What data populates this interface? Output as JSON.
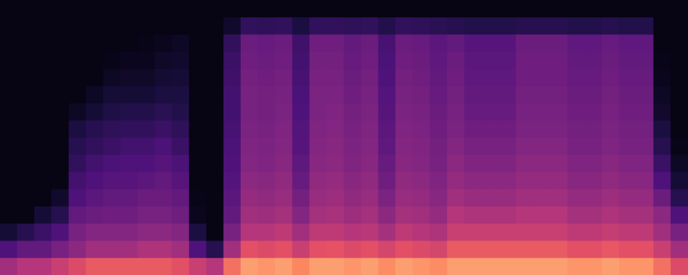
{
  "chart_data": {
    "type": "heatmap",
    "color": "magma",
    "tick_labels": false,
    "zlim": [
      0,
      100
    ],
    "x": [
      null,
      null,
      null,
      null,
      null,
      null,
      null,
      null,
      null,
      null,
      null,
      null,
      null,
      null,
      null,
      null,
      null,
      null,
      null,
      null,
      null,
      null,
      null,
      null,
      null,
      null,
      null,
      null,
      null,
      null,
      null,
      null,
      null,
      null,
      null,
      null,
      null,
      null,
      null,
      null
    ],
    "y": [
      null,
      null,
      null,
      null,
      null,
      null,
      null,
      null,
      null,
      null,
      null,
      null,
      null,
      null,
      null,
      null
    ],
    "cells": [
      [
        45,
        25,
        10,
        3,
        3,
        3,
        3,
        3,
        3,
        3,
        3,
        3,
        3,
        3,
        3,
        3
      ],
      [
        50,
        30,
        15,
        3,
        3,
        3,
        3,
        3,
        3,
        3,
        3,
        3,
        3,
        3,
        3,
        3
      ],
      [
        50,
        30,
        20,
        10,
        3,
        3,
        3,
        3,
        3,
        3,
        3,
        3,
        3,
        3,
        3,
        3
      ],
      [
        55,
        35,
        25,
        15,
        8,
        3,
        3,
        3,
        3,
        3,
        3,
        3,
        3,
        3,
        3,
        3
      ],
      [
        60,
        40,
        35,
        30,
        25,
        22,
        18,
        15,
        12,
        6,
        3,
        3,
        3,
        3,
        3,
        3
      ],
      [
        65,
        45,
        38,
        32,
        28,
        25,
        22,
        18,
        15,
        10,
        6,
        3,
        3,
        3,
        3,
        3
      ],
      [
        65,
        45,
        38,
        33,
        30,
        27,
        24,
        20,
        17,
        13,
        10,
        6,
        4,
        3,
        3,
        3
      ],
      [
        65,
        45,
        38,
        33,
        30,
        27,
        25,
        22,
        18,
        14,
        10,
        7,
        5,
        3,
        3,
        3
      ],
      [
        65,
        48,
        40,
        35,
        32,
        28,
        25,
        22,
        18,
        14,
        10,
        7,
        5,
        4,
        3,
        3
      ],
      [
        65,
        48,
        40,
        35,
        32,
        30,
        27,
        24,
        20,
        16,
        12,
        9,
        7,
        5,
        3,
        3
      ],
      [
        62,
        45,
        38,
        33,
        30,
        27,
        24,
        20,
        17,
        14,
        12,
        10,
        8,
        6,
        3,
        3
      ],
      [
        55,
        25,
        12,
        5,
        4,
        3,
        3,
        3,
        3,
        3,
        3,
        3,
        3,
        3,
        3,
        3
      ],
      [
        50,
        15,
        3,
        3,
        3,
        3,
        3,
        3,
        3,
        3,
        3,
        3,
        3,
        3,
        3,
        3
      ],
      [
        70,
        45,
        35,
        30,
        28,
        26,
        25,
        24,
        23,
        22,
        22,
        21,
        20,
        18,
        8,
        3
      ],
      [
        80,
        62,
        50,
        45,
        42,
        40,
        38,
        37,
        36,
        35,
        35,
        34,
        33,
        32,
        18,
        3
      ],
      [
        78,
        60,
        50,
        44,
        41,
        39,
        37,
        36,
        35,
        34,
        34,
        33,
        32,
        31,
        17,
        3
      ],
      [
        80,
        62,
        52,
        46,
        43,
        41,
        39,
        38,
        37,
        36,
        35,
        34,
        33,
        32,
        18,
        3
      ],
      [
        75,
        55,
        45,
        38,
        34,
        31,
        29,
        27,
        26,
        25,
        24,
        23,
        22,
        21,
        12,
        3
      ],
      [
        80,
        62,
        52,
        46,
        43,
        41,
        39,
        38,
        37,
        36,
        36,
        35,
        34,
        33,
        18,
        3
      ],
      [
        80,
        63,
        52,
        47,
        44,
        42,
        40,
        39,
        38,
        37,
        36,
        35,
        34,
        33,
        18,
        3
      ],
      [
        78,
        60,
        50,
        44,
        41,
        39,
        37,
        36,
        35,
        34,
        33,
        32,
        31,
        30,
        17,
        3
      ],
      [
        80,
        62,
        51,
        46,
        43,
        41,
        39,
        38,
        37,
        36,
        35,
        34,
        33,
        32,
        18,
        3
      ],
      [
        76,
        58,
        46,
        40,
        36,
        33,
        31,
        29,
        28,
        27,
        26,
        25,
        24,
        23,
        14,
        3
      ],
      [
        80,
        62,
        52,
        46,
        43,
        41,
        39,
        38,
        37,
        36,
        35,
        34,
        33,
        32,
        18,
        3
      ],
      [
        78,
        60,
        50,
        45,
        42,
        40,
        38,
        37,
        36,
        35,
        34,
        33,
        32,
        31,
        17,
        3
      ],
      [
        76,
        58,
        48,
        42,
        39,
        37,
        35,
        34,
        33,
        32,
        31,
        30,
        29,
        28,
        16,
        3
      ],
      [
        80,
        65,
        55,
        50,
        45,
        42,
        40,
        38,
        36,
        35,
        34,
        33,
        32,
        30,
        15,
        3
      ],
      [
        80,
        65,
        55,
        48,
        43,
        40,
        37,
        35,
        33,
        31,
        30,
        29,
        28,
        27,
        14,
        3
      ],
      [
        80,
        65,
        55,
        48,
        43,
        40,
        37,
        35,
        33,
        31,
        30,
        29,
        28,
        27,
        14,
        3
      ],
      [
        80,
        65,
        55,
        48,
        43,
        40,
        37,
        35,
        33,
        31,
        30,
        29,
        28,
        27,
        14,
        3
      ],
      [
        80,
        65,
        55,
        50,
        45,
        42,
        40,
        38,
        36,
        35,
        34,
        33,
        33,
        32,
        15,
        3
      ],
      [
        80,
        65,
        55,
        50,
        45,
        42,
        40,
        38,
        36,
        35,
        34,
        33,
        33,
        32,
        15,
        3
      ],
      [
        80,
        65,
        55,
        50,
        45,
        42,
        40,
        38,
        36,
        35,
        34,
        33,
        33,
        32,
        15,
        3
      ],
      [
        78,
        62,
        52,
        46,
        42,
        39,
        37,
        35,
        34,
        33,
        32,
        31,
        30,
        29,
        14,
        3
      ],
      [
        78,
        62,
        52,
        46,
        42,
        39,
        37,
        35,
        34,
        33,
        32,
        31,
        30,
        29,
        14,
        3
      ],
      [
        80,
        64,
        54,
        48,
        44,
        41,
        39,
        37,
        36,
        35,
        34,
        33,
        32,
        31,
        15,
        3
      ],
      [
        78,
        62,
        52,
        46,
        42,
        39,
        37,
        35,
        34,
        33,
        32,
        31,
        30,
        29,
        14,
        3
      ],
      [
        78,
        62,
        52,
        46,
        42,
        39,
        37,
        35,
        34,
        33,
        32,
        31,
        30,
        29,
        14,
        3
      ],
      [
        70,
        55,
        45,
        40,
        32,
        25,
        20,
        15,
        12,
        8,
        6,
        5,
        4,
        3,
        3,
        3
      ],
      [
        60,
        45,
        35,
        25,
        15,
        10,
        6,
        4,
        3,
        3,
        3,
        3,
        3,
        3,
        3,
        3
      ]
    ]
  }
}
